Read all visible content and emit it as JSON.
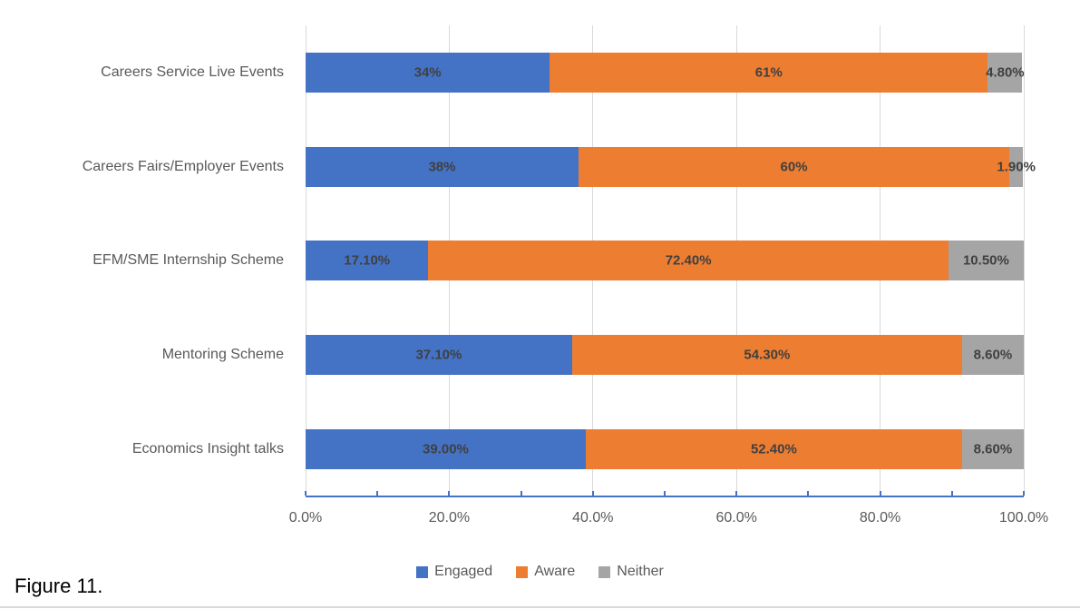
{
  "figure_caption": "Figure 11.",
  "colors": {
    "engaged": "#4472C4",
    "aware": "#ED7D31",
    "neither": "#A5A5A5",
    "gridline": "#D9D9D9",
    "axis_line": "#4472C4",
    "data_label_text": "#404040",
    "axis_text": "#595959",
    "caption_text": "#000000"
  },
  "chart_data": {
    "type": "bar",
    "orientation": "horizontal",
    "stacked": true,
    "title": "",
    "xlabel": "",
    "ylabel": "",
    "grid": true,
    "categories": [
      "Careers Service Live Events",
      "Careers Fairs/Employer Events",
      "EFM/SME Internship Scheme",
      "Mentoring Scheme",
      "Economics Insight talks"
    ],
    "series": [
      {
        "name": "Engaged",
        "color": "#4472C4",
        "values": [
          34,
          38,
          17.1,
          37.1,
          39.0
        ],
        "labels": [
          "34%",
          "38%",
          "17.10%",
          "37.10%",
          "39.00%"
        ]
      },
      {
        "name": "Aware",
        "color": "#ED7D31",
        "values": [
          61,
          60,
          72.4,
          54.3,
          52.4
        ],
        "labels": [
          "61%",
          "60%",
          "72.40%",
          "54.30%",
          "52.40%"
        ]
      },
      {
        "name": "Neither",
        "color": "#A5A5A5",
        "values": [
          4.8,
          1.9,
          10.5,
          8.6,
          8.6
        ],
        "labels": [
          "4.80%",
          "1.90%",
          "10.50%",
          "8.60%",
          "8.60%"
        ]
      }
    ],
    "x_axis": {
      "range": [
        0,
        100
      ],
      "major_tick_step": 20,
      "minor_tick_step": 10,
      "tick_labels": [
        "0.0%",
        "20.0%",
        "40.0%",
        "60.0%",
        "80.0%",
        "100.0%"
      ]
    },
    "legend": {
      "position": "bottom",
      "entries": [
        "Engaged",
        "Aware",
        "Neither"
      ]
    }
  }
}
